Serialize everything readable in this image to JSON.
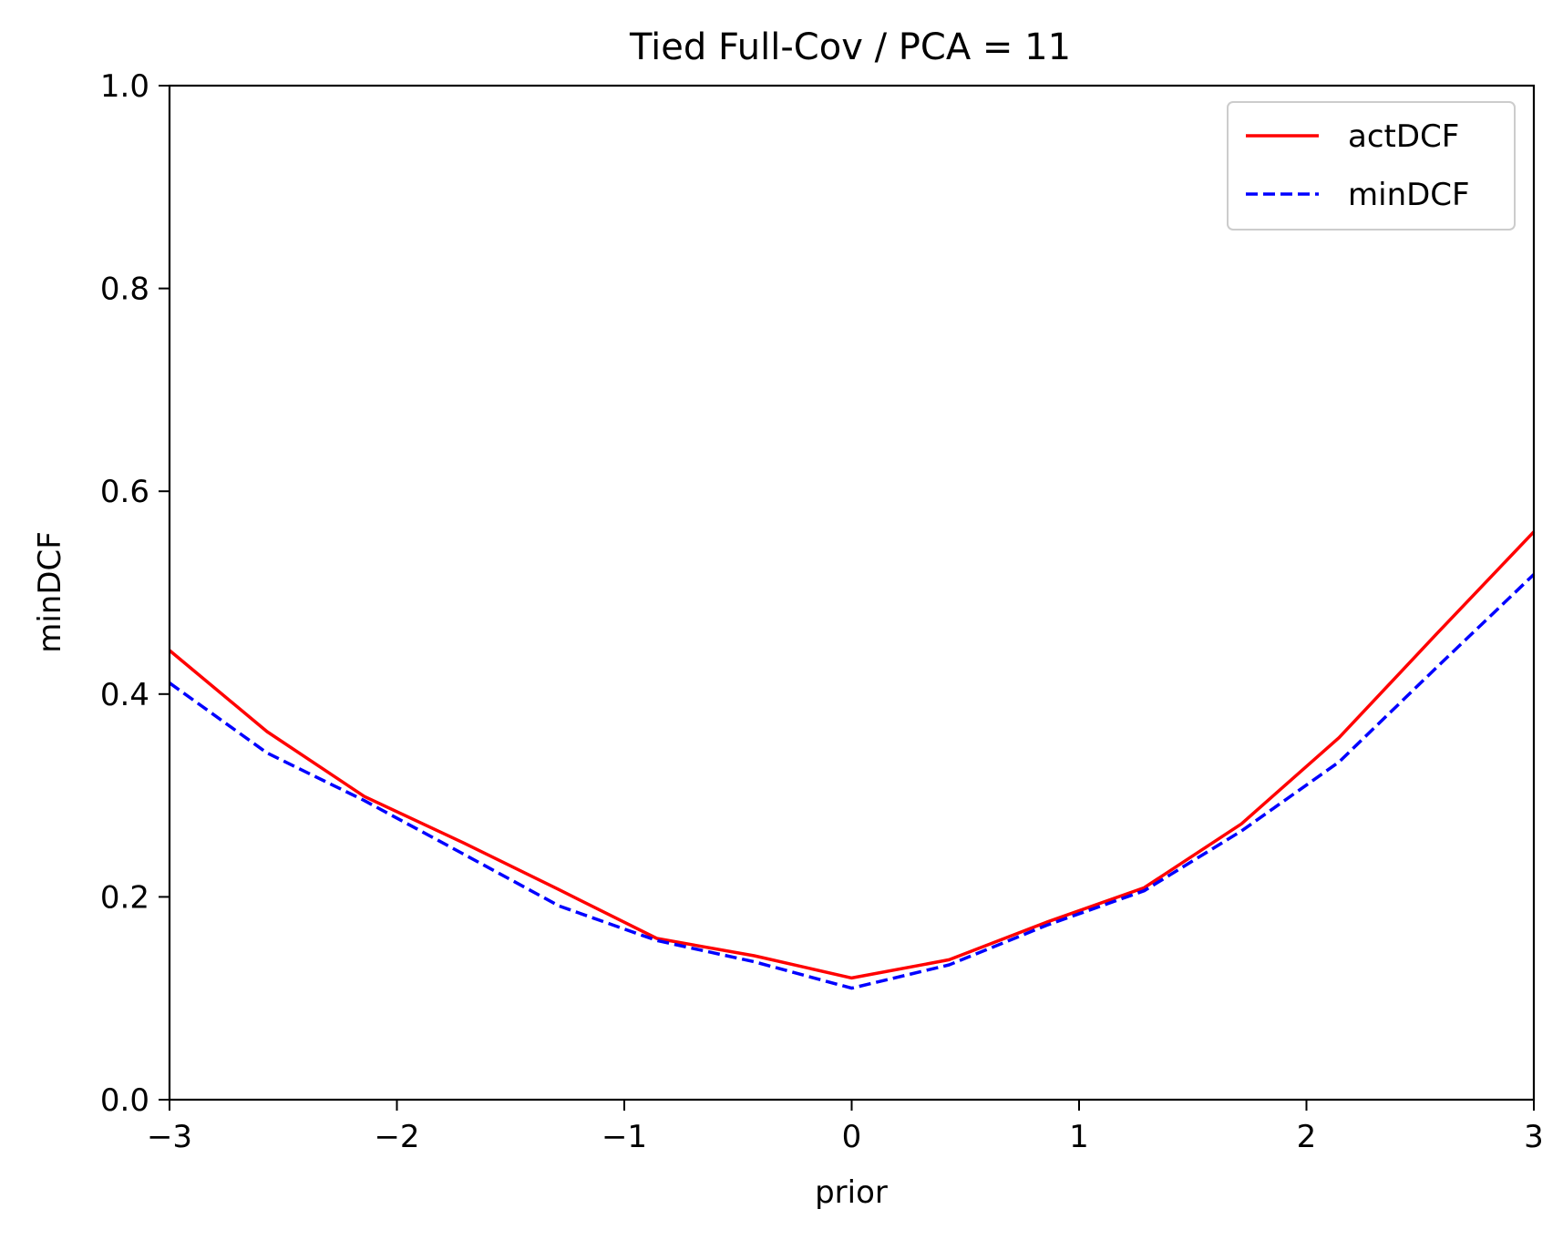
{
  "chart_data": {
    "type": "line",
    "title": "Tied Full-Cov / PCA = 11",
    "xlabel": "prior",
    "ylabel": "minDCF",
    "xlim": [
      -3,
      3
    ],
    "ylim": [
      0,
      1
    ],
    "x_ticks": [
      -3,
      -2,
      -1,
      0,
      1,
      2,
      3
    ],
    "x_tick_labels": [
      "−3",
      "−2",
      "−1",
      "0",
      "1",
      "2",
      "3"
    ],
    "y_ticks": [
      0,
      0.2,
      0.4,
      0.6,
      0.8,
      1.0
    ],
    "y_tick_labels": [
      "0.0",
      "0.2",
      "0.4",
      "0.6",
      "0.8",
      "1.0"
    ],
    "grid": false,
    "legend_position": "top-right",
    "x": [
      -3,
      -2.571,
      -2.143,
      -1.714,
      -1.286,
      -0.857,
      -0.429,
      0,
      0.429,
      0.857,
      1.286,
      1.714,
      2.143,
      2.571,
      3
    ],
    "series": [
      {
        "name": "actDCF",
        "color": "#ff0000",
        "style": "solid",
        "values": [
          0.443,
          0.363,
          0.299,
          0.254,
          0.207,
          0.159,
          0.142,
          0.12,
          0.138,
          0.175,
          0.209,
          0.272,
          0.357,
          0.459,
          0.56
        ]
      },
      {
        "name": "minDCF",
        "color": "#0000ff",
        "style": "dashed",
        "values": [
          0.411,
          0.342,
          0.295,
          0.243,
          0.191,
          0.157,
          0.136,
          0.11,
          0.133,
          0.172,
          0.206,
          0.265,
          0.333,
          0.426,
          0.518
        ]
      }
    ]
  }
}
